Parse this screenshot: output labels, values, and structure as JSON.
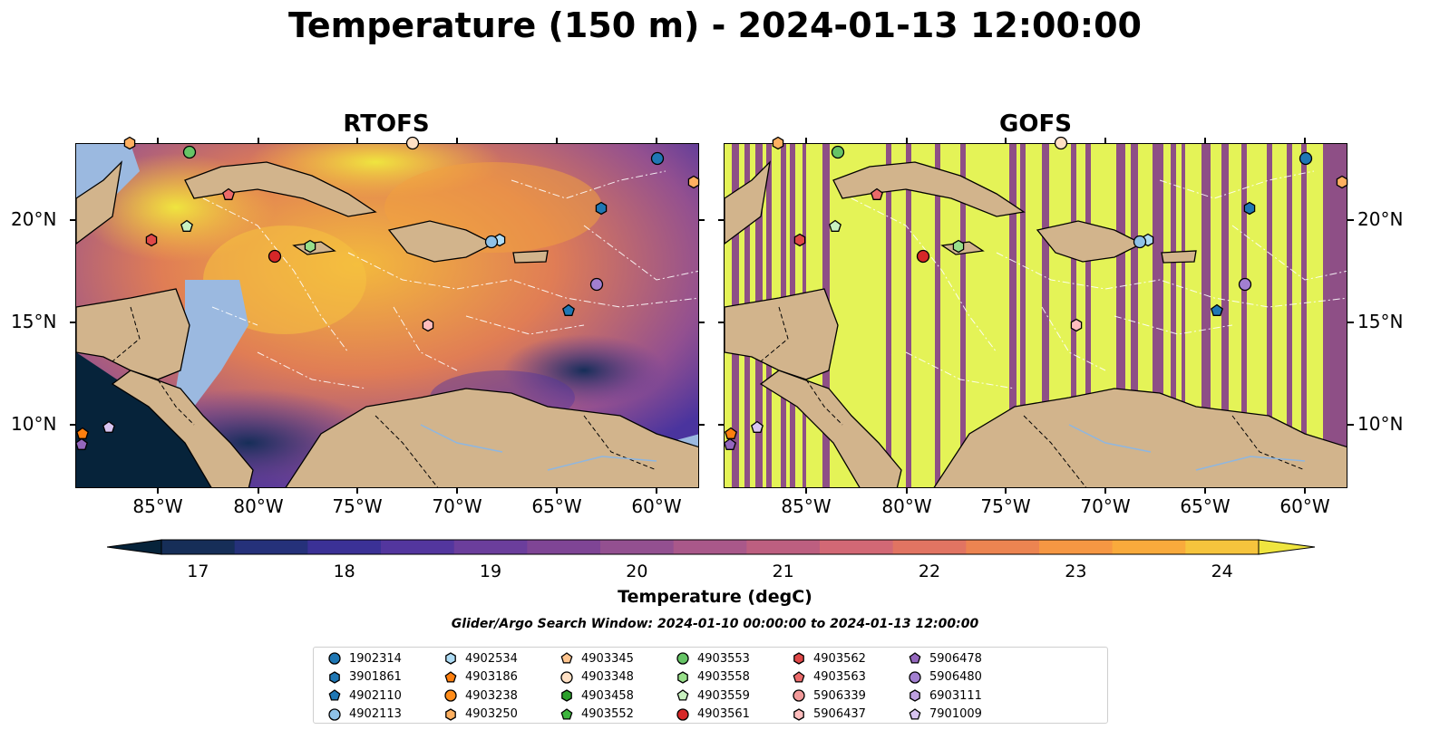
{
  "title": "Temperature (150 m) - 2024-01-13 12:00:00",
  "panels": [
    {
      "title": "RTOFS"
    },
    {
      "title": "GOFS"
    }
  ],
  "axes": {
    "x_ticks": [
      "85°W",
      "80°W",
      "75°W",
      "70°W",
      "65°W",
      "60°W"
    ],
    "y_ticks": [
      "20°N",
      "15°N",
      "10°N"
    ]
  },
  "colorbar": {
    "label": "Temperature (degC)",
    "ticks": [
      "17",
      "18",
      "19",
      "20",
      "21",
      "22",
      "23",
      "24"
    ],
    "range": [
      16.75,
      24.5
    ],
    "colors": [
      "#06233a",
      "#162e58",
      "#25317a",
      "#3b3196",
      "#53369e",
      "#6b3e9c",
      "#7f4595",
      "#935090",
      "#a9588a",
      "#bd5f80",
      "#d26875",
      "#e17462",
      "#ec8451",
      "#f69743",
      "#f9aa3c",
      "#f6c43d",
      "#efe53f"
    ],
    "extend": "both"
  },
  "search_window": "Glider/Argo Search Window: 2024-01-10 00:00:00 to 2024-01-13 12:00:00",
  "legend": [
    {
      "label": "1902314",
      "marker": "circle",
      "color": "#1f77b4"
    },
    {
      "label": "3901861",
      "marker": "hexagon",
      "color": "#1f77b4"
    },
    {
      "label": "4902110",
      "marker": "pentagon",
      "color": "#1f77b4"
    },
    {
      "label": "4902113",
      "marker": "circle",
      "color": "#8ec1e8"
    },
    {
      "label": "4902534",
      "marker": "hexagon",
      "color": "#aedcf5"
    },
    {
      "label": "4903186",
      "marker": "pentagon",
      "color": "#ff7f0e"
    },
    {
      "label": "4903238",
      "marker": "circle",
      "color": "#ff8c1a"
    },
    {
      "label": "4903250",
      "marker": "hexagon",
      "color": "#ffb060"
    },
    {
      "label": "4903345",
      "marker": "pentagon",
      "color": "#ffc58f"
    },
    {
      "label": "4903348",
      "marker": "circle",
      "color": "#ffe0c4"
    },
    {
      "label": "4903458",
      "marker": "hexagon",
      "color": "#2ca02c"
    },
    {
      "label": "4903552",
      "marker": "pentagon",
      "color": "#3cb53c"
    },
    {
      "label": "4903553",
      "marker": "circle",
      "color": "#66c466"
    },
    {
      "label": "4903558",
      "marker": "hexagon",
      "color": "#98df8a"
    },
    {
      "label": "4903559",
      "marker": "pentagon",
      "color": "#c9f2c0"
    },
    {
      "label": "4903561",
      "marker": "circle",
      "color": "#d62728"
    },
    {
      "label": "4903562",
      "marker": "hexagon",
      "color": "#e04848"
    },
    {
      "label": "4903563",
      "marker": "pentagon",
      "color": "#ec6a6a"
    },
    {
      "label": "5906339",
      "marker": "circle",
      "color": "#f29a9a"
    },
    {
      "label": "5906437",
      "marker": "hexagon",
      "color": "#ffbdbd"
    },
    {
      "label": "5906478",
      "marker": "pentagon",
      "color": "#9467bd"
    },
    {
      "label": "5906480",
      "marker": "circle",
      "color": "#a27fd0"
    },
    {
      "label": "6903111",
      "marker": "hexagon",
      "color": "#bea0e0"
    },
    {
      "label": "7901009",
      "marker": "pentagon",
      "color": "#d8c4f0"
    }
  ],
  "colors": {
    "land": "#d2b48c",
    "shelf": "#9bb9e0",
    "gofs_yellow": "#e4f357",
    "gofs_purple": "#8e4f86"
  }
}
